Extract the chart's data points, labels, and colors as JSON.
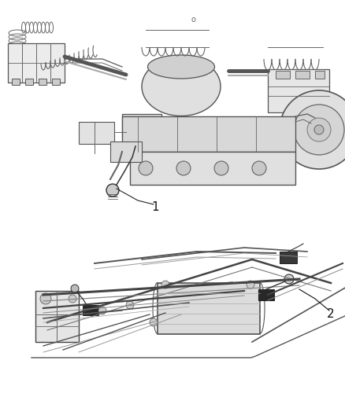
{
  "background_color": "#ffffff",
  "label_1": "1",
  "label_2": "2",
  "fig_width": 4.38,
  "fig_height": 5.33,
  "dpi": 100,
  "line_color": "#888888",
  "dark_color": "#333333",
  "mid_color": "#666666"
}
